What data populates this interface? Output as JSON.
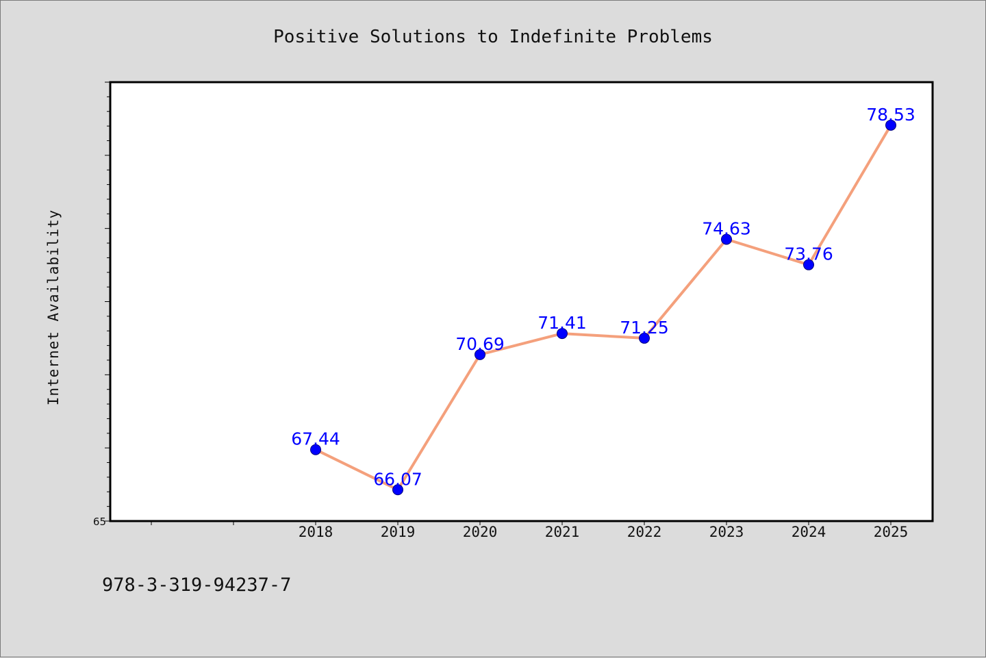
{
  "footer_text": "978-3-319-94237-7",
  "colors": {
    "background": "#dcdcdc",
    "plot_background": "#ffffff",
    "line": "#f4a07c",
    "marker": "#0000ff",
    "data_label": "#0000ff"
  },
  "chart_data": {
    "type": "line",
    "title": "Positive Solutions to Indefinite Problems",
    "xlabel": "",
    "ylabel": "Internet Availability",
    "categories": [
      "2018",
      "2019",
      "2020",
      "2021",
      "2022",
      "2023",
      "2024",
      "2025"
    ],
    "series": [
      {
        "values": [
          67.44,
          66.07,
          70.69,
          71.41,
          71.25,
          74.63,
          73.76,
          78.53
        ],
        "labels": [
          "67.44",
          "66.07",
          "70.69",
          "71.41",
          "71.25",
          "74.63",
          "73.76",
          "78.53"
        ]
      }
    ],
    "ylim": [
      65,
      80
    ],
    "y_tick_labels": [
      "65"
    ],
    "grid": false,
    "legend": "none"
  }
}
